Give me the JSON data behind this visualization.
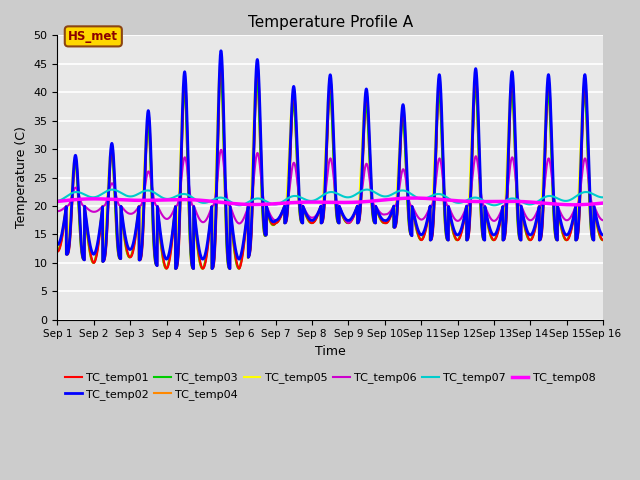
{
  "title": "Temperature Profile A",
  "xlabel": "Time",
  "ylabel": "Temperature (C)",
  "ylim": [
    0,
    50
  ],
  "yticks": [
    0,
    5,
    10,
    15,
    20,
    25,
    30,
    35,
    40,
    45,
    50
  ],
  "n_days": 15,
  "xtick_labels": [
    "Sep 1",
    "Sep 2",
    "Sep 3",
    "Sep 4",
    "Sep 5",
    "Sep 6",
    "Sep 7",
    "Sep 8",
    "Sep 9",
    "Sep 10",
    "Sep 11",
    "Sep 12",
    "Sep 13",
    "Sep 14",
    "Sep 15",
    "Sep 16"
  ],
  "annotation_text": "HS_met",
  "annotation_color": "#8B0000",
  "annotation_bg": "#FFD700",
  "annotation_border": "#8B4513",
  "series_colors": {
    "TC_temp01": "#FF0000",
    "TC_temp02": "#0000FF",
    "TC_temp03": "#00CC00",
    "TC_temp04": "#FF8800",
    "TC_temp05": "#FFFF00",
    "TC_temp06": "#CC00CC",
    "TC_temp07": "#00CCCC",
    "TC_temp08": "#FF00FF"
  },
  "series_linewidths": {
    "TC_temp01": 1.5,
    "TC_temp02": 2.0,
    "TC_temp03": 1.5,
    "TC_temp04": 1.5,
    "TC_temp05": 1.5,
    "TC_temp06": 1.5,
    "TC_temp07": 1.5,
    "TC_temp08": 2.5
  },
  "background_color": "#E8E8E8",
  "grid_color": "#FFFFFF",
  "fig_bg": "#CCCCCC",
  "peak_amps": [
    8,
    9,
    12,
    20,
    25,
    27,
    22,
    18,
    26,
    13,
    21,
    23,
    23,
    22,
    22
  ],
  "trough_temps": [
    12,
    10,
    11,
    9,
    9,
    9,
    17,
    17,
    17,
    17,
    14,
    14,
    14,
    14,
    14
  ]
}
